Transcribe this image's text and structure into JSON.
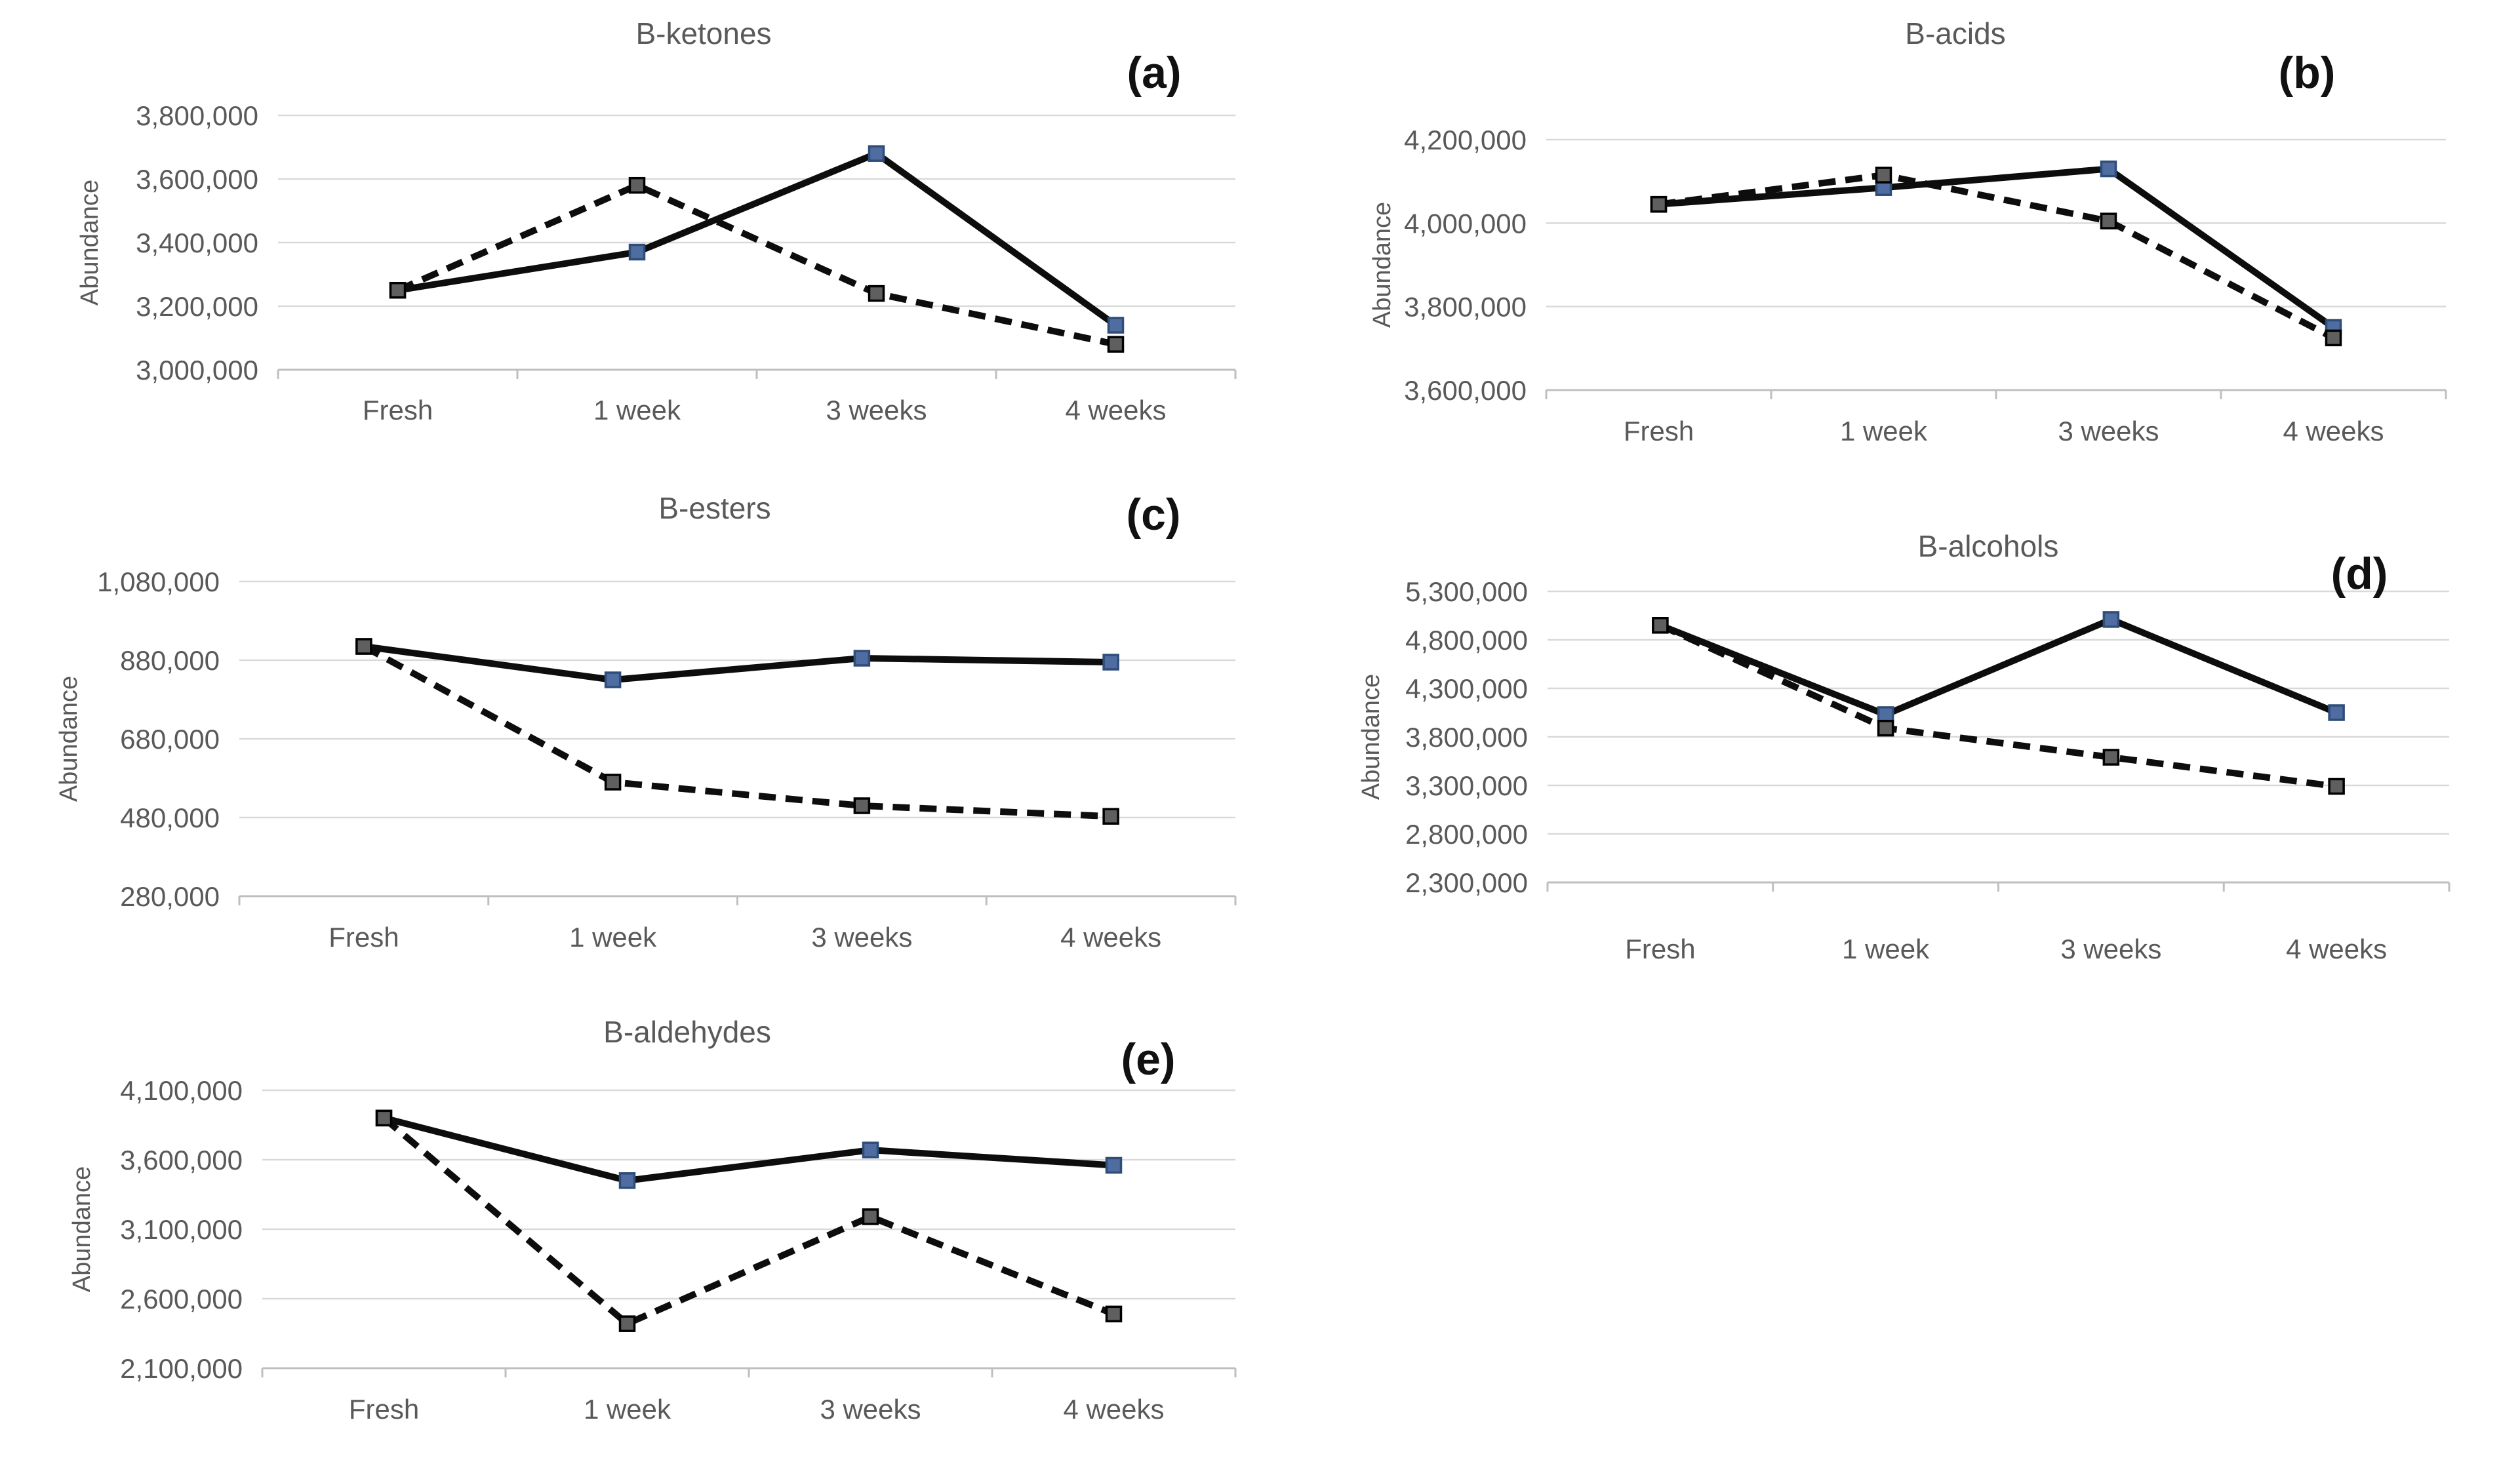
{
  "figure": {
    "background": "#ffffff",
    "y_axis_title": "Abundance",
    "x_categories": [
      "Fresh",
      "1 week",
      "3 weeks",
      "4 weeks"
    ]
  },
  "style": {
    "grid_color": "#d9d9d9",
    "axis_color": "#bfbfbf",
    "text_color": "#595959",
    "line_color": "#0d0d0d",
    "solid_marker_fill": "#4f6da1",
    "solid_marker_stroke": "#2e4d79",
    "dashed_marker_fill": "#5f5f5f",
    "dashed_marker_stroke": "#000000"
  },
  "chart_data": [
    {
      "id": "a",
      "type": "line",
      "title": "B-ketones",
      "panel_label": "(a)",
      "ylabel": "Abundance",
      "categories": [
        "Fresh",
        "1 week",
        "3 weeks",
        "4 weeks"
      ],
      "ylim": [
        3000000,
        3800000
      ],
      "ytick_step": 200000,
      "ytick_labels_top_down": [
        "3,800,000",
        "3,600,000",
        "3,400,000",
        "3,200,000",
        "3,000,000"
      ],
      "grid": true,
      "legend": "none",
      "series": [
        {
          "name": "solid-line-series",
          "line_style": "solid",
          "values": [
            3250000,
            3370000,
            3680000,
            3140000
          ]
        },
        {
          "name": "dashed-line-series",
          "line_style": "dashed",
          "values": [
            3250000,
            3580000,
            3240000,
            3080000
          ]
        }
      ]
    },
    {
      "id": "b",
      "type": "line",
      "title": "B-acids",
      "panel_label": "(b)",
      "ylabel": "Abundance",
      "categories": [
        "Fresh",
        "1 week",
        "3 weeks",
        "4 weeks"
      ],
      "ylim": [
        3600000,
        4200000
      ],
      "ytick_step": 200000,
      "ytick_labels_top_down": [
        "4,200,000",
        "4,000,000",
        "3,800,000",
        "3,600,000"
      ],
      "grid": true,
      "legend": "none",
      "series": [
        {
          "name": "solid-line-series",
          "line_style": "solid",
          "values": [
            4045000,
            4085000,
            4130000,
            3750000
          ]
        },
        {
          "name": "dashed-line-series",
          "line_style": "dashed",
          "values": [
            4045000,
            4115000,
            4005000,
            3725000
          ]
        }
      ]
    },
    {
      "id": "c",
      "type": "line",
      "title": "B-esters",
      "panel_label": "(c)",
      "ylabel": "Abundance",
      "categories": [
        "Fresh",
        "1 week",
        "3 weeks",
        "4 weeks"
      ],
      "ylim": [
        280000,
        1080000
      ],
      "ytick_step": 200000,
      "ytick_labels_top_down": [
        "1,080,000",
        "880,000",
        "680,000",
        "480,000",
        "280,000"
      ],
      "grid": true,
      "legend": "none",
      "series": [
        {
          "name": "solid-line-series",
          "line_style": "solid",
          "values": [
            915000,
            830000,
            885000,
            875000
          ]
        },
        {
          "name": "dashed-line-series",
          "line_style": "dashed",
          "values": [
            915000,
            570000,
            510000,
            483000
          ]
        }
      ]
    },
    {
      "id": "d",
      "type": "line",
      "title": "B-alcohols",
      "panel_label": "(d)",
      "ylabel": "Abundance",
      "categories": [
        "Fresh",
        "1 week",
        "3 weeks",
        "4 weeks"
      ],
      "ylim": [
        2300000,
        5300000
      ],
      "ytick_step": 500000,
      "ytick_labels_top_down": [
        "5,300,000",
        "4,800,000",
        "4,300,000",
        "3,800,000",
        "3,300,000",
        "2,800,000",
        "2,300,000"
      ],
      "grid": true,
      "legend": "none",
      "series": [
        {
          "name": "solid-line-series",
          "line_style": "solid",
          "values": [
            4950000,
            4030000,
            5010000,
            4050000
          ]
        },
        {
          "name": "dashed-line-series",
          "line_style": "dashed",
          "values": [
            4950000,
            3890000,
            3590000,
            3290000
          ]
        }
      ]
    },
    {
      "id": "e",
      "type": "line",
      "title": "B-aldehydes",
      "panel_label": "(e)",
      "ylabel": "Abundance",
      "categories": [
        "Fresh",
        "1 week",
        "3 weeks",
        "4 weeks"
      ],
      "ylim": [
        2100000,
        4100000
      ],
      "ytick_step": 500000,
      "ytick_labels_top_down": [
        "4,100,000",
        "3,600,000",
        "3,100,000",
        "2,600,000",
        "2,100,000"
      ],
      "grid": true,
      "legend": "none",
      "series": [
        {
          "name": "solid-line-series",
          "line_style": "solid",
          "values": [
            3900000,
            3450000,
            3670000,
            3560000
          ]
        },
        {
          "name": "dashed-line-series",
          "line_style": "dashed",
          "values": [
            3900000,
            2420000,
            3190000,
            2490000
          ]
        }
      ]
    }
  ]
}
